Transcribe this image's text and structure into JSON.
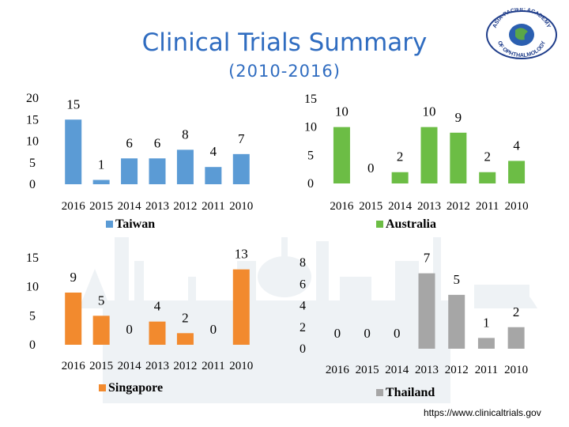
{
  "header": {
    "title": "Clinical Trials Summary",
    "subtitle": "(2010-2016)"
  },
  "logo": {
    "text_top": "ASIA-PACIFIC ACADEMY",
    "text_bottom": "OF OPHTHALMOLOGY"
  },
  "footer": {
    "url": "https://www.clinicaltrials.gov"
  },
  "chart_data": [
    {
      "type": "bar",
      "legend": "Taiwan",
      "categories": [
        "2016",
        "2015",
        "2014",
        "2013",
        "2012",
        "2011",
        "2010"
      ],
      "values": [
        15,
        1,
        6,
        6,
        8,
        4,
        7
      ],
      "yticks": [
        "0",
        "5",
        "10",
        "15",
        "20"
      ],
      "ylim": [
        0,
        20
      ],
      "color": "#5b9bd5"
    },
    {
      "type": "bar",
      "legend": "Australia",
      "categories": [
        "2016",
        "2015",
        "2014",
        "2013",
        "2012",
        "2011",
        "2010"
      ],
      "values": [
        10,
        0,
        2,
        10,
        9,
        2,
        4
      ],
      "yticks": [
        "0",
        "5",
        "10",
        "15"
      ],
      "ylim": [
        0,
        15
      ],
      "color": "#6cbd45"
    },
    {
      "type": "bar",
      "legend": "Singapore",
      "categories": [
        "2016",
        "2015",
        "2014",
        "2013",
        "2012",
        "2011",
        "2010"
      ],
      "values": [
        9,
        5,
        0,
        4,
        2,
        0,
        13
      ],
      "yticks": [
        "0",
        "5",
        "10",
        "15"
      ],
      "ylim": [
        0,
        15
      ],
      "color": "#f28a2e"
    },
    {
      "type": "bar",
      "legend": "Thailand",
      "categories": [
        "2016",
        "2015",
        "2014",
        "2013",
        "2012",
        "2011",
        "2010"
      ],
      "values": [
        0,
        0,
        0,
        7,
        5,
        1,
        2
      ],
      "yticks": [
        "0",
        "2",
        "4",
        "6",
        "8"
      ],
      "ylim": [
        0,
        8
      ],
      "color": "#a6a6a6"
    }
  ]
}
